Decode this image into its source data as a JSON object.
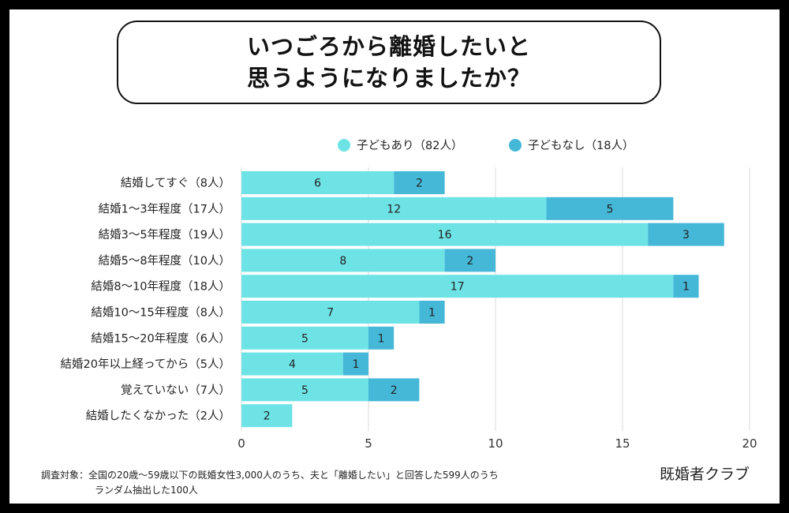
{
  "title_lines": [
    "いつごろから離婚したいと",
    "思うようになりましたか？"
  ],
  "chart_data": {
    "type": "bar",
    "orientation": "horizontal",
    "stacked": true,
    "categories": [
      "結婚してすぐ（8人）",
      "結婚1～3年程度（17人）",
      "結婚3～5年程度（19人）",
      "結婚5～8年程度（10人）",
      "結婚8～10年程度（18人）",
      "結婚10～15年程度（8人）",
      "結婚15～20年程度（6人）",
      "結婚20年以上経ってから（5人）",
      "覚えていない（7人）",
      "結婚したくなかった（2人）"
    ],
    "series": [
      {
        "name": "子どもあり（82人）",
        "color": "#6ee3e6",
        "values": [
          6,
          12,
          16,
          8,
          17,
          7,
          5,
          4,
          5,
          2
        ]
      },
      {
        "name": "子どもなし（18人）",
        "color": "#45b8d8",
        "values": [
          2,
          5,
          3,
          2,
          1,
          1,
          1,
          1,
          2,
          0
        ]
      }
    ],
    "xlim": [
      0,
      20
    ],
    "xticks": [
      0,
      5,
      10,
      15,
      20
    ],
    "grid": true,
    "legend": "top-right"
  },
  "note_lines": [
    "調査対象：全国の20歳～59歳以下の既婚女性3,000人のうち、夫と「離婚したい」と回答した599人のうち",
    "ランダム抽出した100人"
  ],
  "brand": "既婚者クラブ"
}
